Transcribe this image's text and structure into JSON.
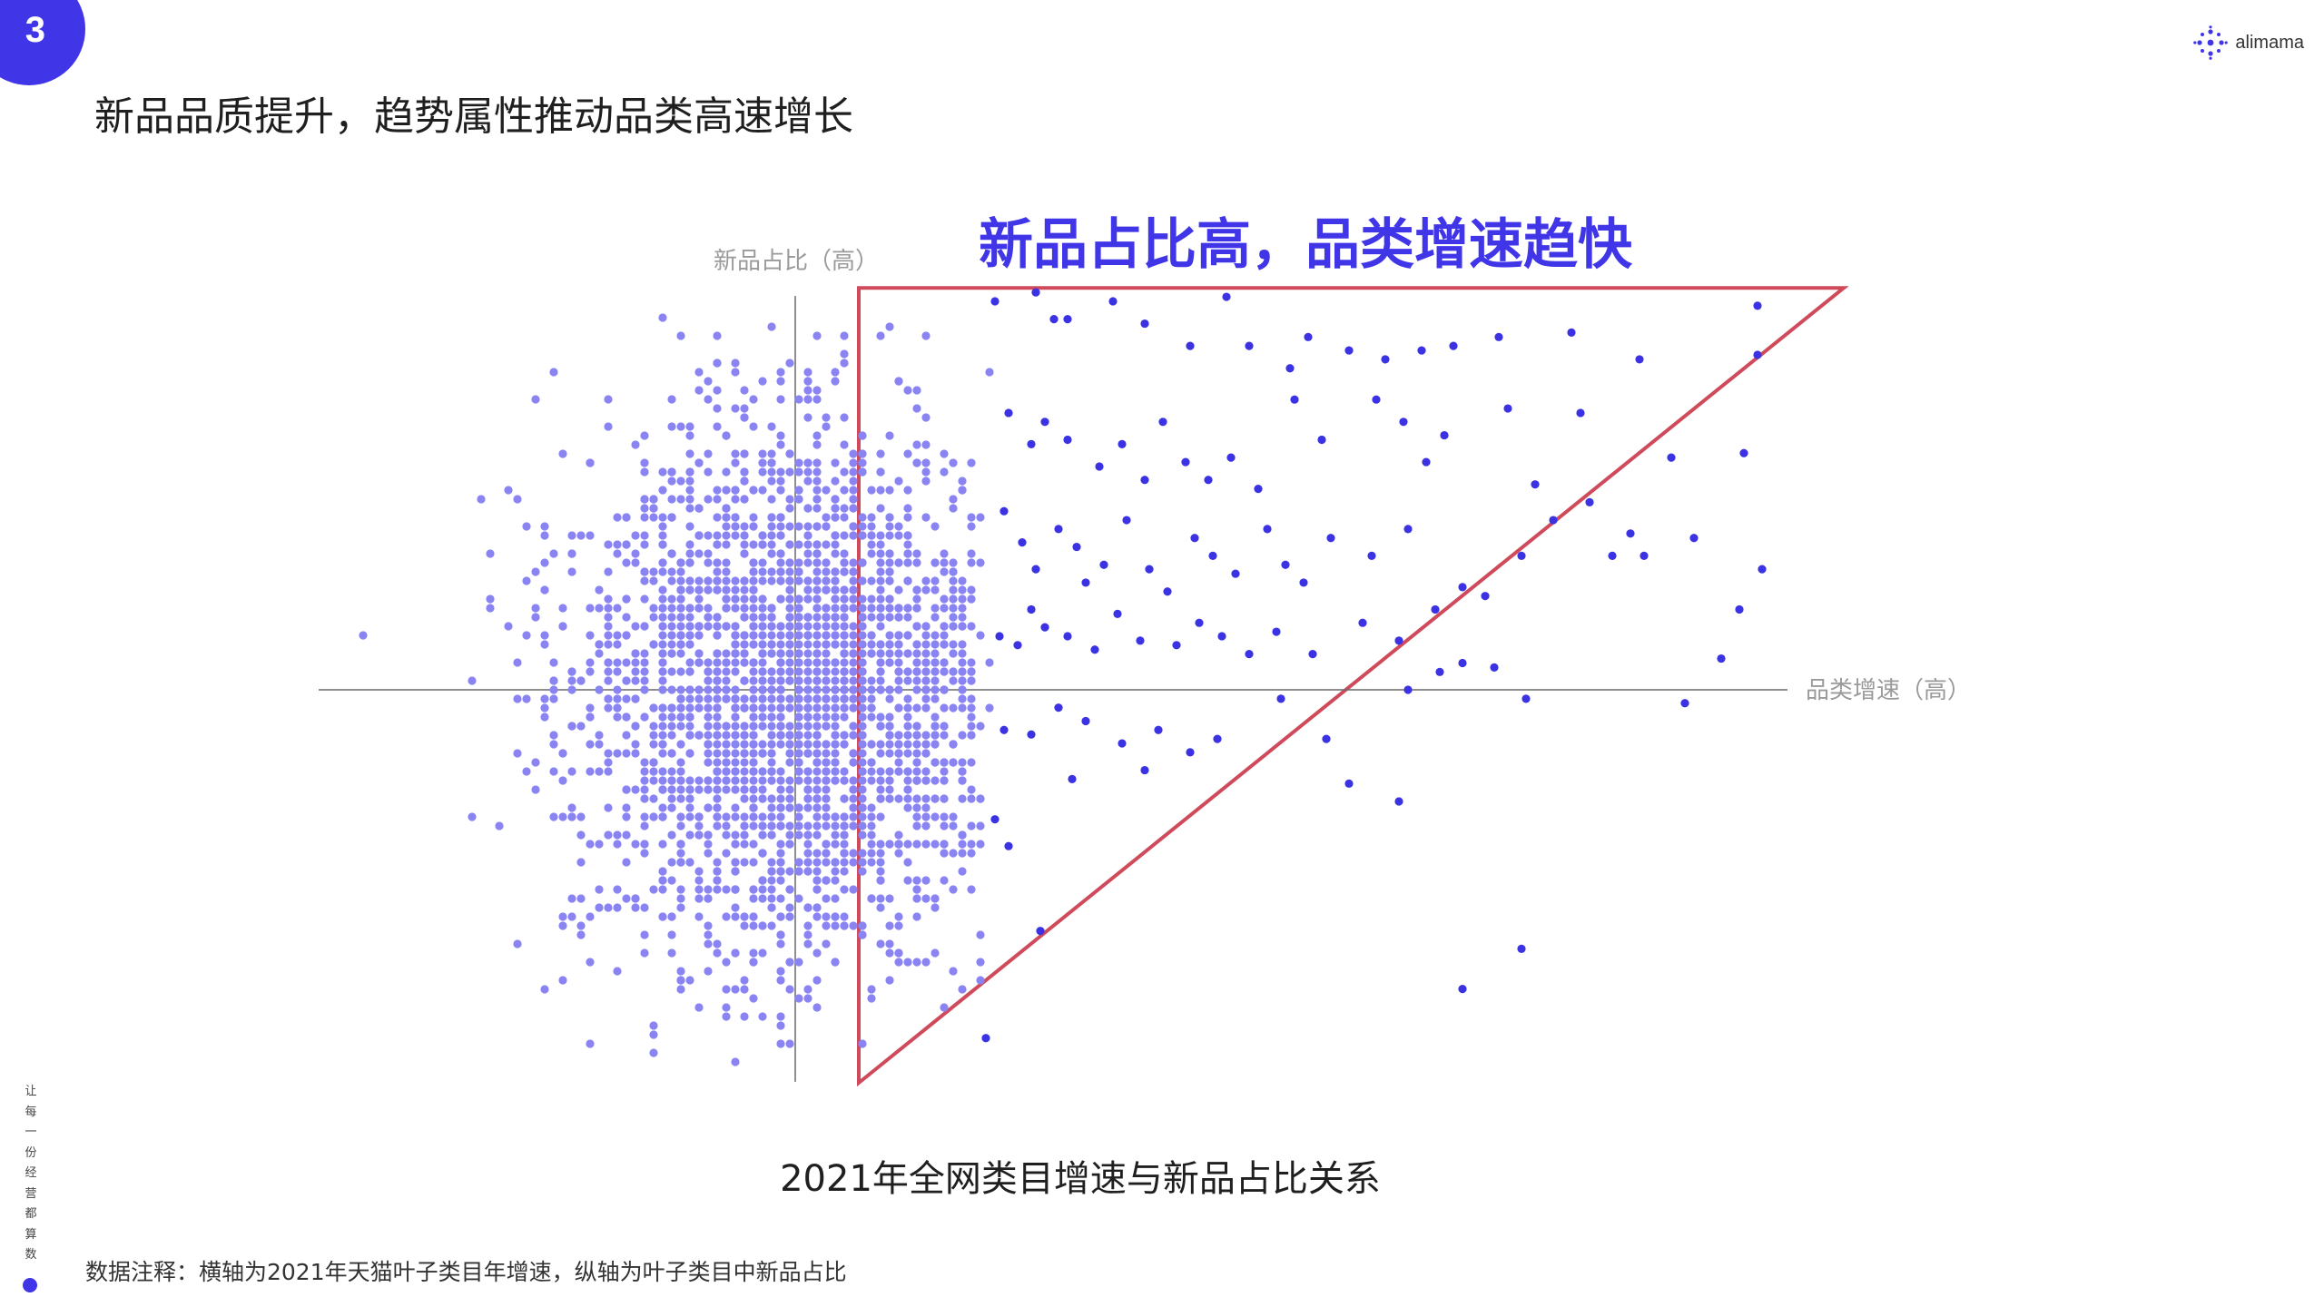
{
  "page": {
    "page_number": "3",
    "headline": "新品品质提升，趋势属性推动品类高速增长",
    "logo_text": "alimama",
    "vertical_slogan": "让每一份经营都算数",
    "footnote": "数据注释：横轴为2021年天猫叶子类目年增速，纵轴为叶子类目中新品占比"
  },
  "colors": {
    "accent": "#4036e8",
    "point_light": "#8a83f2",
    "point_dark": "#3b33e3",
    "triangle": "#cf4a5b",
    "axis": "#6a6a6a",
    "axis_label": "#9a9a9a"
  },
  "chart_data": {
    "type": "scatter",
    "title": "2021年全网类目增速与新品占比关系",
    "xlabel": "品类增速（高）",
    "ylabel": "新品占比（高）",
    "axes_cross_at_origin": true,
    "ticks": "none",
    "grid": false,
    "annotation_title": "新品占比高，品类增速趋快",
    "highlight_triangle": [
      [
        0.14,
        -0.88
      ],
      [
        0.14,
        0.9
      ],
      [
        2.31,
        0.9
      ]
    ],
    "x_range": [
      -1.03,
      2.17
    ],
    "y_range": [
      -0.89,
      0.89
    ],
    "series": [
      {
        "name": "",
        "style": "light",
        "cluster": true,
        "count": 2600,
        "center": [
          0.0,
          0.0
        ],
        "spread": [
          0.24,
          0.31
        ],
        "x_range": [
          -1.03,
          0.42
        ],
        "y_range": [
          -0.84,
          0.86
        ]
      },
      {
        "name": "",
        "style": "dark",
        "points": [
          [
            0.44,
            0.87
          ],
          [
            0.53,
            0.89
          ],
          [
            0.57,
            0.83
          ],
          [
            0.6,
            0.83
          ],
          [
            0.7,
            0.87
          ],
          [
            0.77,
            0.82
          ],
          [
            0.87,
            0.77
          ],
          [
            0.95,
            0.88
          ],
          [
            1.0,
            0.77
          ],
          [
            1.09,
            0.72
          ],
          [
            1.13,
            0.79
          ],
          [
            1.22,
            0.76
          ],
          [
            1.3,
            0.74
          ],
          [
            1.38,
            0.76
          ],
          [
            1.45,
            0.77
          ],
          [
            1.55,
            0.79
          ],
          [
            1.71,
            0.8
          ],
          [
            1.86,
            0.74
          ],
          [
            2.12,
            0.86
          ],
          [
            2.12,
            0.75
          ],
          [
            0.47,
            0.62
          ],
          [
            0.52,
            0.55
          ],
          [
            0.55,
            0.6
          ],
          [
            0.6,
            0.56
          ],
          [
            0.67,
            0.5
          ],
          [
            0.72,
            0.55
          ],
          [
            0.77,
            0.47
          ],
          [
            0.81,
            0.6
          ],
          [
            0.86,
            0.51
          ],
          [
            0.91,
            0.47
          ],
          [
            0.96,
            0.52
          ],
          [
            1.02,
            0.45
          ],
          [
            1.1,
            0.65
          ],
          [
            1.16,
            0.56
          ],
          [
            1.28,
            0.65
          ],
          [
            1.34,
            0.6
          ],
          [
            1.39,
            0.51
          ],
          [
            1.43,
            0.57
          ],
          [
            1.57,
            0.63
          ],
          [
            1.63,
            0.46
          ],
          [
            1.75,
            0.42
          ],
          [
            1.93,
            0.52
          ],
          [
            2.09,
            0.53
          ],
          [
            1.73,
            0.62
          ],
          [
            0.46,
            0.4
          ],
          [
            0.5,
            0.33
          ],
          [
            0.53,
            0.27
          ],
          [
            0.58,
            0.36
          ],
          [
            0.62,
            0.32
          ],
          [
            0.64,
            0.24
          ],
          [
            0.68,
            0.28
          ],
          [
            0.73,
            0.38
          ],
          [
            0.78,
            0.27
          ],
          [
            0.82,
            0.22
          ],
          [
            0.88,
            0.34
          ],
          [
            0.92,
            0.3
          ],
          [
            0.97,
            0.26
          ],
          [
            1.04,
            0.36
          ],
          [
            1.08,
            0.28
          ],
          [
            1.12,
            0.24
          ],
          [
            1.18,
            0.34
          ],
          [
            1.27,
            0.3
          ],
          [
            1.35,
            0.36
          ],
          [
            1.41,
            0.18
          ],
          [
            1.47,
            0.23
          ],
          [
            1.52,
            0.21
          ],
          [
            1.6,
            0.3
          ],
          [
            1.67,
            0.38
          ],
          [
            1.8,
            0.3
          ],
          [
            1.84,
            0.35
          ],
          [
            1.87,
            0.3
          ],
          [
            1.98,
            0.34
          ],
          [
            2.13,
            0.27
          ],
          [
            2.08,
            0.18
          ],
          [
            2.04,
            0.07
          ],
          [
            0.45,
            0.12
          ],
          [
            0.49,
            0.1
          ],
          [
            0.52,
            0.18
          ],
          [
            0.55,
            0.14
          ],
          [
            0.6,
            0.12
          ],
          [
            0.66,
            0.09
          ],
          [
            0.71,
            0.17
          ],
          [
            0.76,
            0.11
          ],
          [
            0.84,
            0.1
          ],
          [
            0.89,
            0.15
          ],
          [
            0.94,
            0.12
          ],
          [
            1.0,
            0.08
          ],
          [
            1.06,
            0.13
          ],
          [
            1.14,
            0.08
          ],
          [
            1.25,
            0.15
          ],
          [
            1.33,
            0.11
          ],
          [
            1.42,
            0.04
          ],
          [
            1.54,
            0.05
          ],
          [
            1.61,
            -0.02
          ],
          [
            0.46,
            -0.09
          ],
          [
            0.52,
            -0.1
          ],
          [
            0.58,
            -0.04
          ],
          [
            0.64,
            -0.07
          ],
          [
            0.72,
            -0.12
          ],
          [
            0.8,
            -0.09
          ],
          [
            0.87,
            -0.14
          ],
          [
            0.93,
            -0.11
          ],
          [
            1.07,
            -0.02
          ],
          [
            1.17,
            -0.11
          ],
          [
            1.22,
            -0.21
          ],
          [
            1.33,
            -0.25
          ],
          [
            1.35,
            0.0
          ],
          [
            1.96,
            -0.03
          ],
          [
            1.47,
            0.06
          ],
          [
            0.44,
            -0.29
          ],
          [
            0.47,
            -0.35
          ],
          [
            0.54,
            -0.54
          ],
          [
            0.61,
            -0.2
          ],
          [
            0.77,
            -0.18
          ],
          [
            1.6,
            -0.58
          ],
          [
            1.47,
            -0.67
          ],
          [
            0.42,
            -0.78
          ]
        ]
      }
    ]
  }
}
